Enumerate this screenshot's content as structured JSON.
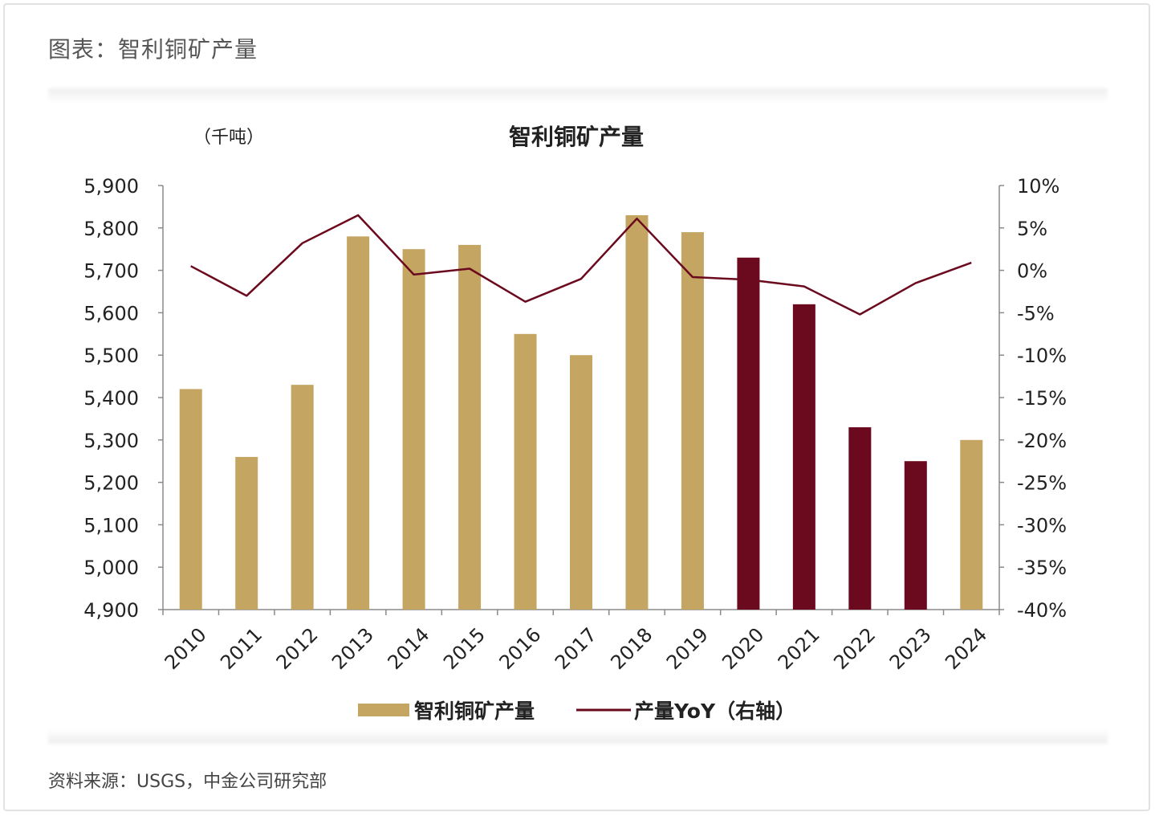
{
  "header": {
    "title": "图表：智利铜矿产量"
  },
  "source": {
    "text": "资料来源：USGS，中金公司研究部"
  },
  "chart_data": {
    "type": "bar",
    "title": "智利铜矿产量",
    "unit_label": "（千吨）",
    "categories": [
      "2010",
      "2011",
      "2012",
      "2013",
      "2014",
      "2015",
      "2016",
      "2017",
      "2018",
      "2019",
      "2020",
      "2021",
      "2022",
      "2023",
      "2024"
    ],
    "series": [
      {
        "name": "智利铜矿产量",
        "type": "bar",
        "axis": "left",
        "values": [
          5420,
          5260,
          5430,
          5780,
          5750,
          5760,
          5550,
          5500,
          5830,
          5790,
          5730,
          5620,
          5330,
          5250,
          5300
        ],
        "color": "#c4a562",
        "highlight_color": "#6b0a1e",
        "highlight_categories": [
          "2020",
          "2021",
          "2022",
          "2023"
        ]
      },
      {
        "name": "产量YoY（右轴）",
        "type": "line",
        "axis": "right",
        "values": [
          0.5,
          -3.0,
          3.2,
          6.5,
          -0.5,
          0.2,
          -3.7,
          -1.0,
          6.1,
          -0.8,
          -1.1,
          -1.9,
          -5.2,
          -1.5,
          0.9
        ],
        "color": "#6b0a1e"
      }
    ],
    "y_left": {
      "min": 4900,
      "max": 5900,
      "step": 100,
      "ticks": [
        "4,900",
        "5,000",
        "5,100",
        "5,200",
        "5,300",
        "5,400",
        "5,500",
        "5,600",
        "5,700",
        "5,800",
        "5,900"
      ]
    },
    "y_right": {
      "min": -40,
      "max": 10,
      "step": 5,
      "ticks": [
        "-40%",
        "-35%",
        "-30%",
        "-25%",
        "-20%",
        "-15%",
        "-10%",
        "-5%",
        "0%",
        "5%",
        "10%"
      ]
    },
    "legend": {
      "placement": "bottom",
      "items": [
        {
          "label": "智利铜矿产量",
          "kind": "bar"
        },
        {
          "label": "产量YoY（右轴）",
          "kind": "line"
        }
      ]
    },
    "grid": false
  }
}
